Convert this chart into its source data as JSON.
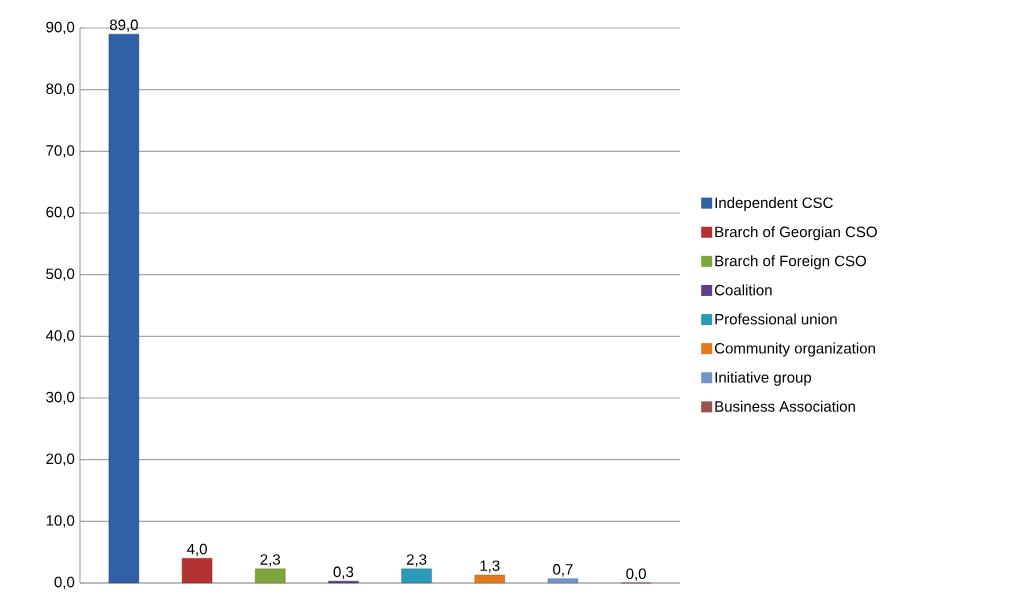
{
  "chart_data": {
    "type": "bar",
    "categories": [
      null,
      null,
      null,
      null,
      null,
      null,
      null,
      null
    ],
    "series": [
      {
        "name": "Independent CSC",
        "color": "#2f5fa5",
        "values": [
          89.0,
          null,
          null,
          null,
          null,
          null,
          null,
          null
        ],
        "value_labels": [
          "89,0",
          null,
          null,
          null,
          null,
          null,
          null,
          null
        ]
      },
      {
        "name": "Brarch of Georgian CSO",
        "color": "#b53131",
        "values": [
          null,
          4.0,
          null,
          null,
          null,
          null,
          null,
          null
        ],
        "value_labels": [
          null,
          "4,0",
          null,
          null,
          null,
          null,
          null,
          null
        ]
      },
      {
        "name": "Brarch of Foreign CSO",
        "color": "#7ea63a",
        "values": [
          null,
          null,
          2.3,
          null,
          null,
          null,
          null,
          null
        ],
        "value_labels": [
          null,
          null,
          "2,3",
          null,
          null,
          null,
          null,
          null
        ]
      },
      {
        "name": "Coalition",
        "color": "#5e3f8c",
        "values": [
          null,
          null,
          null,
          0.3,
          null,
          null,
          null,
          null
        ],
        "value_labels": [
          null,
          null,
          null,
          "0,3",
          null,
          null,
          null,
          null
        ]
      },
      {
        "name": "Professional union",
        "color": "#2a9ab8",
        "values": [
          null,
          null,
          null,
          null,
          2.3,
          null,
          null,
          null
        ],
        "value_labels": [
          null,
          null,
          null,
          null,
          "2,3",
          null,
          null,
          null
        ]
      },
      {
        "name": "Community organization",
        "color": "#e37a1f",
        "values": [
          null,
          null,
          null,
          null,
          null,
          1.3,
          null,
          null
        ],
        "value_labels": [
          null,
          null,
          null,
          null,
          null,
          "1,3",
          null,
          null
        ]
      },
      {
        "name": "Initiative group",
        "color": "#7394c6",
        "values": [
          null,
          null,
          null,
          null,
          null,
          null,
          0.7,
          null
        ],
        "value_labels": [
          null,
          null,
          null,
          null,
          null,
          null,
          "0,7",
          null
        ]
      },
      {
        "name": "Business Association",
        "color": "#9c4f4f",
        "values": [
          null,
          null,
          null,
          null,
          null,
          null,
          null,
          0.0
        ],
        "value_labels": [
          null,
          null,
          null,
          null,
          null,
          null,
          null,
          "0,0"
        ]
      }
    ],
    "ylim": [
      0,
      90
    ],
    "yticks": [
      {
        "value": 0,
        "label": "0,0"
      },
      {
        "value": 10,
        "label": "10,0"
      },
      {
        "value": 20,
        "label": "20,0"
      },
      {
        "value": 30,
        "label": "30,0"
      },
      {
        "value": 40,
        "label": "40,0"
      },
      {
        "value": 50,
        "label": "50,0"
      },
      {
        "value": 60,
        "label": "60,0"
      },
      {
        "value": 70,
        "label": "70,0"
      },
      {
        "value": 80,
        "label": "80,0"
      },
      {
        "value": 90,
        "label": "90,0"
      }
    ],
    "grid": "y",
    "legend": "right"
  }
}
